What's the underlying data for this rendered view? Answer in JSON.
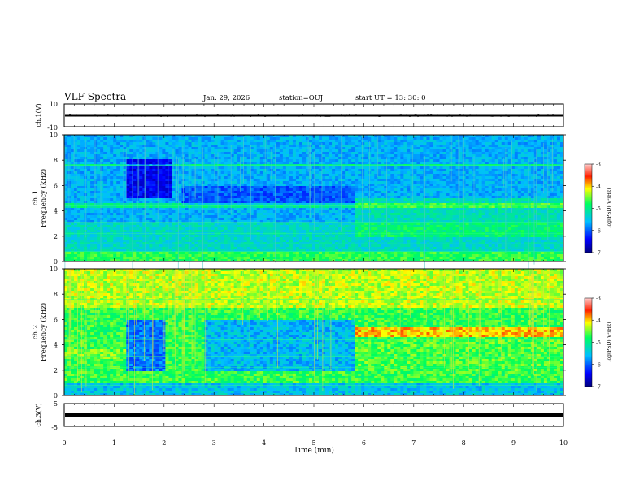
{
  "header": {
    "title": "VLF Spectra",
    "date": "Jan. 29, 2026",
    "station": "station=OUJ",
    "start": "start UT =  13: 30: 0"
  },
  "chart_data": [
    {
      "type": "line",
      "panel": "ch1-waveform",
      "ylabel": "ch.1(V)",
      "ylim": [
        -10,
        10
      ],
      "yticks": [
        "10",
        "-10"
      ],
      "level": 0,
      "noise_amplitude": 1
    },
    {
      "type": "heatmap",
      "panel": "ch1-spectrogram",
      "ylabel": "ch.1\nFrequency (kHz)",
      "ylabel_lines": [
        "ch.1",
        "Frequency (kHz)"
      ],
      "ylim": [
        0,
        10
      ],
      "yticks": [
        "0",
        "2",
        "4",
        "6",
        "8",
        "10"
      ],
      "colorbar": {
        "label": "log(PSD)(V²/Hz)",
        "range": [
          -7,
          -3
        ],
        "ticks": [
          "-3",
          "-4",
          "-5",
          "-6",
          "-7"
        ]
      }
    },
    {
      "type": "heatmap",
      "panel": "ch2-spectrogram",
      "ylabel": "ch.2\nFrequency (kHz)",
      "ylabel_lines": [
        "ch.2",
        "Frequency (kHz)"
      ],
      "ylim": [
        0,
        10
      ],
      "yticks": [
        "0",
        "2",
        "4",
        "6",
        "8",
        "10"
      ],
      "colorbar": {
        "label": "log(PSD)(V²/Hz)",
        "range": [
          -7,
          -3
        ],
        "ticks": [
          "-3",
          "-4",
          "-5",
          "-6",
          "-7"
        ]
      }
    },
    {
      "type": "line",
      "panel": "ch3-waveform",
      "ylabel": "ch.3(V)",
      "ylim": [
        -5,
        5
      ],
      "yticks": [
        "5",
        "-5"
      ],
      "level": -0.5
    }
  ],
  "xaxis": {
    "label": "Time (min)",
    "range": [
      0,
      10
    ],
    "ticks": [
      "0",
      "1",
      "2",
      "3",
      "4",
      "5",
      "6",
      "7",
      "8",
      "9",
      "10"
    ]
  },
  "colors": {
    "low": "#00008b",
    "mid": "#00c8ff",
    "high": "#ff0000"
  }
}
